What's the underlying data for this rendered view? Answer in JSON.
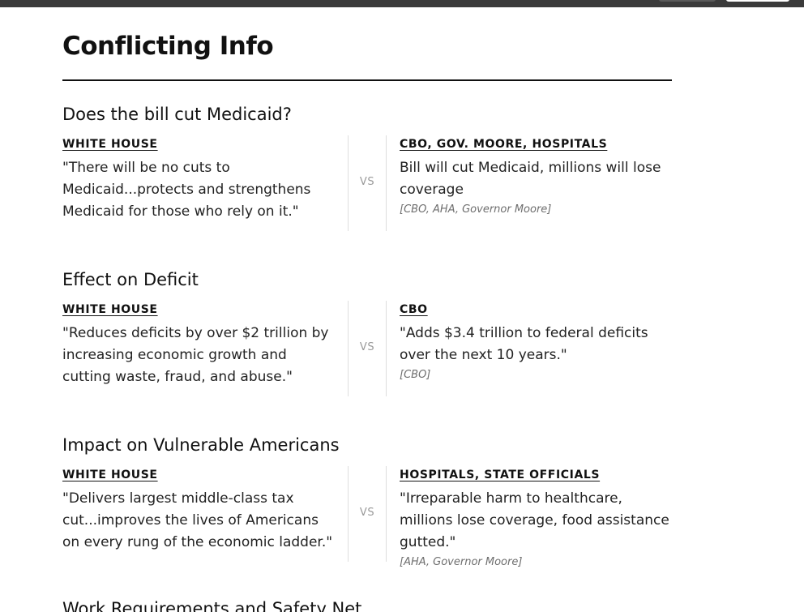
{
  "page": {
    "title": "Conflicting Info"
  },
  "sections": [
    {
      "title": "Does the bill cut Medicaid?",
      "left": {
        "source": "WHITE HOUSE",
        "claim": "\"There will be no cuts to Medicaid...protects and strengthens Medicaid for those who rely on it.\""
      },
      "vs": "VS",
      "right": {
        "source": "CBO, GOV. MOORE, HOSPITALS",
        "claim": "Bill will cut Medicaid, millions will lose coverage",
        "citation": "[CBO, AHA, Governor Moore]"
      }
    },
    {
      "title": "Effect on Deficit",
      "left": {
        "source": "WHITE HOUSE",
        "claim": "\"Reduces deficits by over $2 trillion by increasing economic growth and cutting waste, fraud, and abuse.\""
      },
      "vs": "VS",
      "right": {
        "source": "CBO",
        "claim": "\"Adds $3.4 trillion to federal deficits over the next 10 years.\"",
        "citation": "[CBO]"
      }
    },
    {
      "title": "Impact on Vulnerable Americans",
      "left": {
        "source": "WHITE HOUSE",
        "claim": "\"Delivers largest middle-class tax cut...improves the lives of Americans on every rung of the economic ladder.\""
      },
      "vs": "VS",
      "right": {
        "source": "HOSPITALS, STATE OFFICIALS",
        "claim": "\"Irreparable harm to healthcare, millions lose coverage, food assistance gutted.\"",
        "citation": "[AHA, Governor Moore]"
      }
    },
    {
      "title": "Work Requirements and Safety Net"
    }
  ]
}
